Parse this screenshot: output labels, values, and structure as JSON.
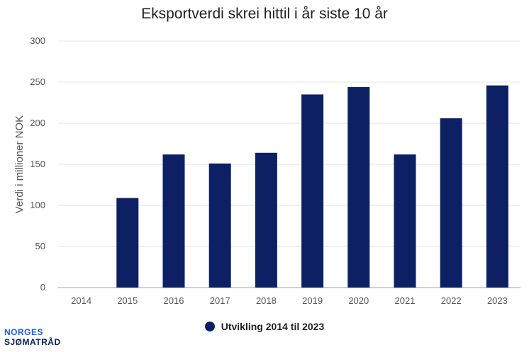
{
  "chart_data": {
    "type": "bar",
    "title": "Eksportverdi skrei hittil i år siste 10 år",
    "xlabel": "",
    "ylabel": "Verdi i millioner NOK",
    "categories": [
      "2014",
      "2015",
      "2016",
      "2017",
      "2018",
      "2019",
      "2020",
      "2021",
      "2022",
      "2023"
    ],
    "series": [
      {
        "name": "Utvikling 2014 til 2023",
        "values": [
          0,
          109,
          162,
          151,
          164,
          235,
          244,
          162,
          206,
          246
        ],
        "color": "#0d2063"
      }
    ],
    "ylim": [
      0,
      300
    ],
    "yticks": [
      0,
      50,
      100,
      150,
      200,
      250,
      300
    ],
    "grid": true,
    "legend_position": "bottom"
  },
  "logo": {
    "line1": "NORGES",
    "line2": "SJØMATRÅD"
  }
}
